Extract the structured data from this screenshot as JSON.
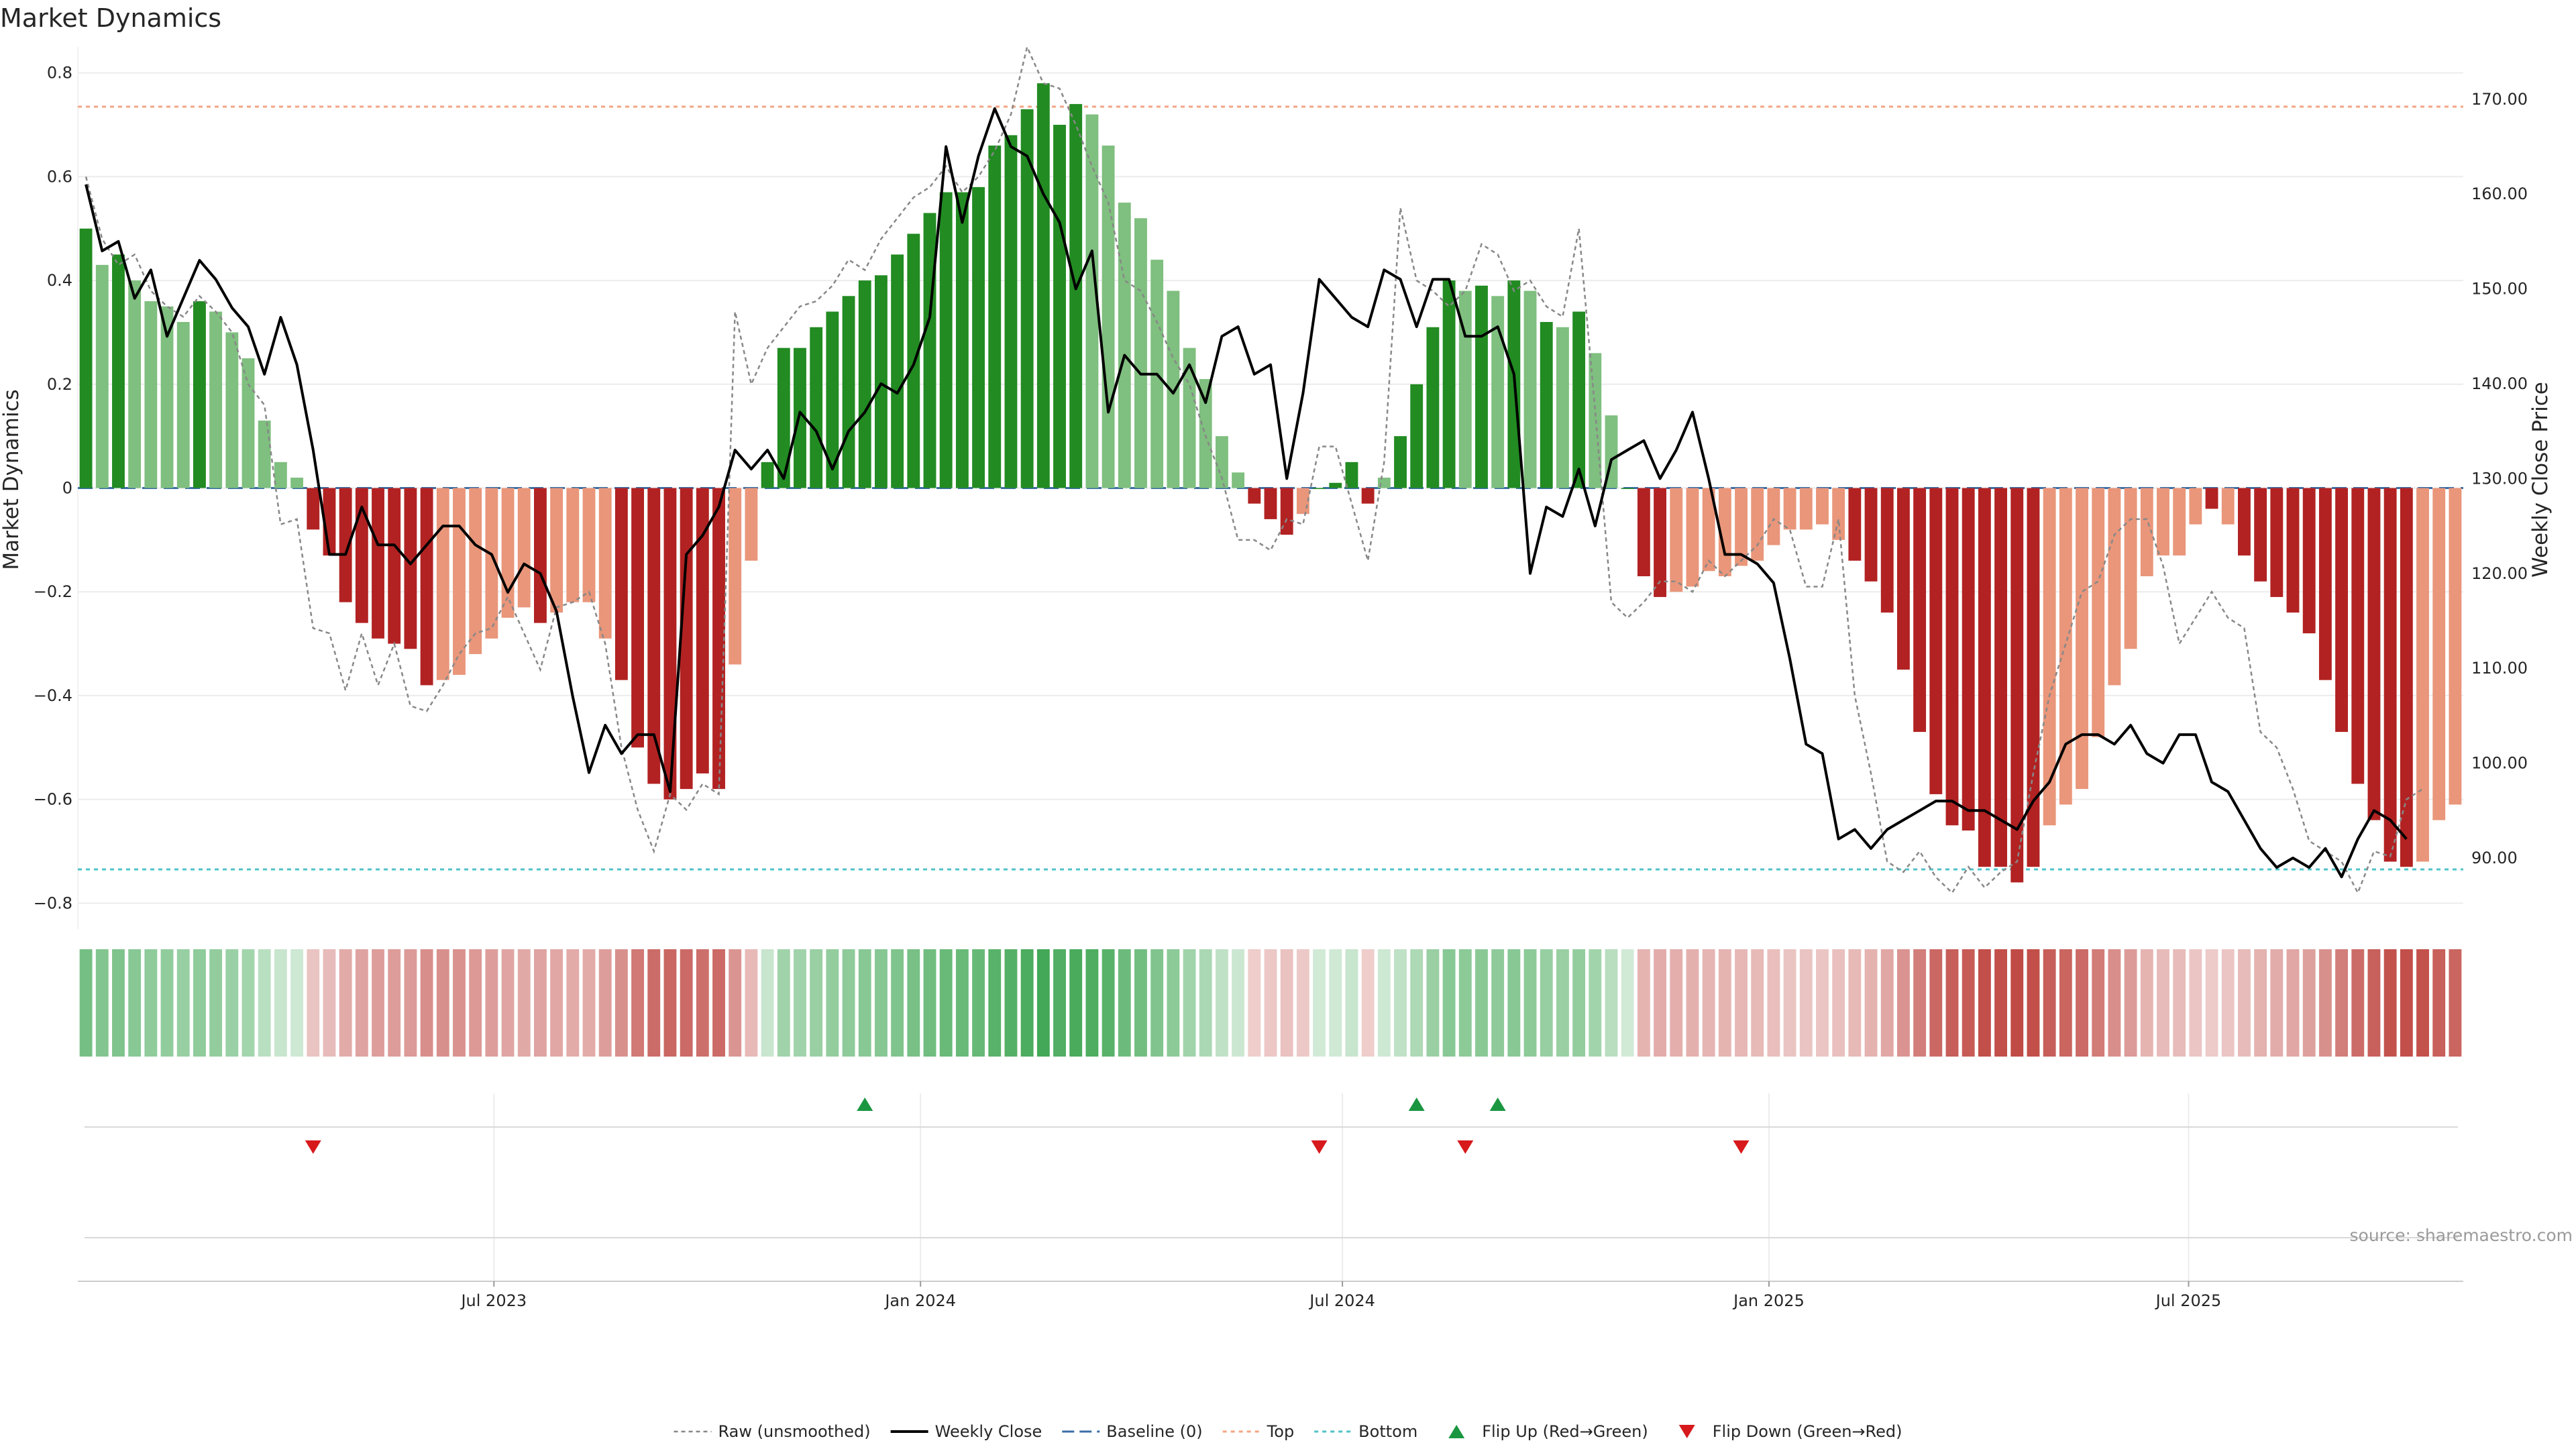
{
  "chart_data": {
    "type": "bar",
    "title": "Market Dynamics",
    "ylabel_left": "Market Dynamics",
    "ylabel_right": "Weekly Close Price",
    "source": "source: sharemaestro.com",
    "ylim_left": [
      -0.85,
      0.85
    ],
    "ylim_right": [
      82.5,
      175.5
    ],
    "yticks_left": [
      0.8,
      0.6,
      0.4,
      0.2,
      0,
      -0.2,
      -0.4,
      -0.6,
      -0.8
    ],
    "yticks_left_labels": [
      "0.8",
      "0.6",
      "0.4",
      "0.2",
      "0",
      "−0.2",
      "−0.4",
      "−0.6",
      "−0.8"
    ],
    "yticks_right": [
      170,
      160,
      150,
      140,
      130,
      120,
      110,
      100,
      90
    ],
    "yticks_right_labels": [
      "170.00",
      "160.00",
      "150.00",
      "140.00",
      "130.00",
      "120.00",
      "110.00",
      "100.00",
      "90.00"
    ],
    "x_start": "2023-01-06",
    "x_end": "2025-10-24",
    "xticks": [
      {
        "date": "2023-07-01",
        "label": "Jul 2023"
      },
      {
        "date": "2024-01-01",
        "label": "Jan 2024"
      },
      {
        "date": "2024-07-01",
        "label": "Jul 2024"
      },
      {
        "date": "2025-01-01",
        "label": "Jan 2025"
      },
      {
        "date": "2025-07-01",
        "label": "Jul 2025"
      }
    ],
    "top_level": 0.735,
    "bottom_level": -0.735,
    "baseline": 0,
    "grid": true,
    "colors": {
      "strong_green": "#228b22",
      "light_green": "#7fbf7f",
      "strong_red": "#b22222",
      "light_red": "#e9967a",
      "top_line": "#f4a582",
      "bottom_line": "#4fc3c7",
      "baseline": "#3a6ea5",
      "raw": "#888888",
      "close": "#000000",
      "flip_up": "#1a9641",
      "flip_down": "#d7191c"
    },
    "dynamics": [
      0.5,
      0.43,
      0.45,
      0.4,
      0.36,
      0.35,
      0.32,
      0.36,
      0.34,
      0.3,
      0.25,
      0.13,
      0.05,
      0.02,
      -0.08,
      -0.13,
      -0.22,
      -0.26,
      -0.29,
      -0.3,
      -0.31,
      -0.38,
      -0.37,
      -0.36,
      -0.32,
      -0.29,
      -0.25,
      -0.23,
      -0.26,
      -0.24,
      -0.22,
      -0.22,
      -0.29,
      -0.37,
      -0.5,
      -0.57,
      -0.6,
      -0.58,
      -0.55,
      -0.58,
      -0.34,
      -0.14,
      0.05,
      0.27,
      0.27,
      0.31,
      0.34,
      0.37,
      0.4,
      0.41,
      0.45,
      0.49,
      0.53,
      0.57,
      0.57,
      0.58,
      0.66,
      0.68,
      0.73,
      0.78,
      0.7,
      0.74,
      0.72,
      0.66,
      0.55,
      0.52,
      0.44,
      0.38,
      0.27,
      0.21,
      0.1,
      0.03,
      -0.03,
      -0.06,
      -0.09,
      -0.05,
      0.0,
      0.01,
      0.05,
      -0.03,
      0.02,
      0.1,
      0.2,
      0.31,
      0.4,
      0.38,
      0.39,
      0.37,
      0.4,
      0.38,
      0.32,
      0.31,
      0.34,
      0.26,
      0.14,
      0.0,
      -0.17,
      -0.21,
      -0.2,
      -0.19,
      -0.16,
      -0.17,
      -0.15,
      -0.14,
      -0.11,
      -0.08,
      -0.08,
      -0.07,
      -0.1,
      -0.14,
      -0.18,
      -0.24,
      -0.35,
      -0.47,
      -0.59,
      -0.65,
      -0.66,
      -0.73,
      -0.73,
      -0.76,
      -0.73,
      -0.65,
      -0.61,
      -0.58,
      -0.48,
      -0.38,
      -0.31,
      -0.17,
      -0.13,
      -0.13,
      -0.07,
      -0.04,
      -0.07,
      -0.13,
      -0.18,
      -0.21,
      -0.24,
      -0.28,
      -0.37,
      -0.47,
      -0.57,
      -0.64,
      -0.72,
      -0.73,
      -0.72,
      -0.64,
      -0.61
    ],
    "strength": [
      "s",
      "l",
      "s",
      "l",
      "l",
      "l",
      "l",
      "s",
      "l",
      "l",
      "l",
      "l",
      "l",
      "l",
      "s",
      "s",
      "s",
      "s",
      "s",
      "s",
      "s",
      "s",
      "l",
      "l",
      "l",
      "l",
      "l",
      "l",
      "s",
      "l",
      "l",
      "l",
      "l",
      "s",
      "s",
      "s",
      "s",
      "s",
      "s",
      "s",
      "l",
      "l",
      "s",
      "s",
      "s",
      "s",
      "s",
      "s",
      "s",
      "s",
      "s",
      "s",
      "s",
      "s",
      "s",
      "s",
      "s",
      "s",
      "s",
      "s",
      "s",
      "s",
      "l",
      "l",
      "l",
      "l",
      "l",
      "l",
      "l",
      "l",
      "l",
      "l",
      "s",
      "s",
      "s",
      "l",
      "s",
      "s",
      "s",
      "s",
      "l",
      "s",
      "s",
      "s",
      "s",
      "l",
      "s",
      "l",
      "s",
      "l",
      "s",
      "l",
      "s",
      "l",
      "l",
      "s",
      "s",
      "s",
      "l",
      "l",
      "l",
      "l",
      "l",
      "l",
      "l",
      "l",
      "l",
      "l",
      "l",
      "s",
      "s",
      "s",
      "s",
      "s",
      "s",
      "s",
      "s",
      "s",
      "s",
      "s",
      "s",
      "l",
      "l",
      "l",
      "l",
      "l",
      "l",
      "l",
      "l",
      "l",
      "l",
      "s",
      "l",
      "s",
      "s",
      "s",
      "s",
      "s",
      "s",
      "s",
      "s",
      "s",
      "s",
      "s",
      "l"
    ],
    "raw": [
      0.6,
      0.48,
      0.43,
      0.45,
      0.38,
      0.35,
      0.33,
      0.37,
      0.34,
      0.3,
      0.2,
      0.16,
      -0.07,
      -0.06,
      -0.27,
      -0.28,
      -0.39,
      -0.28,
      -0.38,
      -0.3,
      -0.42,
      -0.43,
      -0.38,
      -0.32,
      -0.28,
      -0.27,
      -0.21,
      -0.28,
      -0.35,
      -0.23,
      -0.22,
      -0.2,
      -0.3,
      -0.5,
      -0.62,
      -0.7,
      -0.59,
      -0.62,
      -0.57,
      -0.59,
      0.34,
      0.2,
      0.27,
      0.31,
      0.35,
      0.36,
      0.39,
      0.44,
      0.42,
      0.48,
      0.52,
      0.56,
      0.58,
      0.62,
      0.57,
      0.6,
      0.65,
      0.72,
      0.85,
      0.78,
      0.77,
      0.7,
      0.62,
      0.55,
      0.4,
      0.38,
      0.32,
      0.25,
      0.2,
      0.1,
      0.02,
      -0.1,
      -0.1,
      -0.12,
      -0.06,
      -0.07,
      0.08,
      0.08,
      -0.03,
      -0.14,
      0.05,
      0.54,
      0.4,
      0.38,
      0.35,
      0.38,
      0.47,
      0.45,
      0.38,
      0.4,
      0.35,
      0.33,
      0.5,
      0.15,
      -0.22,
      -0.25,
      -0.22,
      -0.18,
      -0.18,
      -0.2,
      -0.14,
      -0.17,
      -0.14,
      -0.11,
      -0.06,
      -0.08,
      -0.19,
      -0.19,
      -0.06,
      -0.4,
      -0.55,
      -0.72,
      -0.74,
      -0.7,
      -0.75,
      -0.78,
      -0.73,
      -0.77,
      -0.74,
      -0.72,
      -0.55,
      -0.4,
      -0.3,
      -0.2,
      -0.18,
      -0.09,
      -0.06,
      -0.06,
      -0.15,
      -0.3,
      -0.25,
      -0.2,
      -0.25,
      -0.27,
      -0.47,
      -0.5,
      -0.58,
      -0.68,
      -0.7,
      -0.72,
      -0.78,
      -0.7,
      -0.71,
      -0.6,
      -0.58
    ],
    "close": [
      161,
      154,
      155,
      149,
      152,
      145,
      149,
      153,
      151,
      148,
      146,
      141,
      147,
      142,
      133,
      122,
      122,
      127,
      123,
      123,
      121,
      123,
      125,
      125,
      123,
      122,
      118,
      121,
      120,
      116,
      107,
      99,
      104,
      101,
      103,
      103,
      97,
      122,
      124,
      127,
      133,
      131,
      133,
      130,
      137,
      135,
      131,
      135,
      137,
      140,
      139,
      142,
      147,
      165,
      157,
      164,
      169,
      165,
      164,
      160,
      157,
      150,
      154,
      137,
      143,
      141,
      141,
      139,
      142,
      138,
      145,
      146,
      141,
      142,
      130,
      139,
      151,
      149,
      147,
      146,
      152,
      151,
      146,
      151,
      151,
      145,
      145,
      146,
      141,
      120,
      127,
      126,
      131,
      125,
      132,
      133,
      134,
      130,
      133,
      137,
      130,
      122,
      122,
      121,
      119,
      111,
      102,
      101,
      92,
      93,
      91,
      93,
      94,
      95,
      96,
      96,
      95,
      95,
      94,
      93,
      96,
      98,
      102,
      103,
      103,
      102,
      104,
      101,
      100,
      103,
      103,
      98,
      97,
      94,
      91,
      89,
      90,
      89,
      91,
      88,
      92,
      95,
      94,
      92
    ],
    "flip_up_dates": [
      "2023-12-08",
      "2024-08-02",
      "2024-09-06"
    ],
    "flip_down_dates": [
      "2023-04-14",
      "2024-06-21",
      "2024-08-23",
      "2024-12-20"
    ],
    "legend": [
      {
        "key": "raw",
        "label": "Raw (unsmoothed)"
      },
      {
        "key": "close",
        "label": "Weekly Close"
      },
      {
        "key": "baseline",
        "label": "Baseline (0)"
      },
      {
        "key": "top",
        "label": "Top"
      },
      {
        "key": "bottom",
        "label": "Bottom"
      },
      {
        "key": "flip_up",
        "label": "Flip Up (Red→Green)"
      },
      {
        "key": "flip_down",
        "label": "Flip Down (Green→Red)"
      }
    ]
  }
}
